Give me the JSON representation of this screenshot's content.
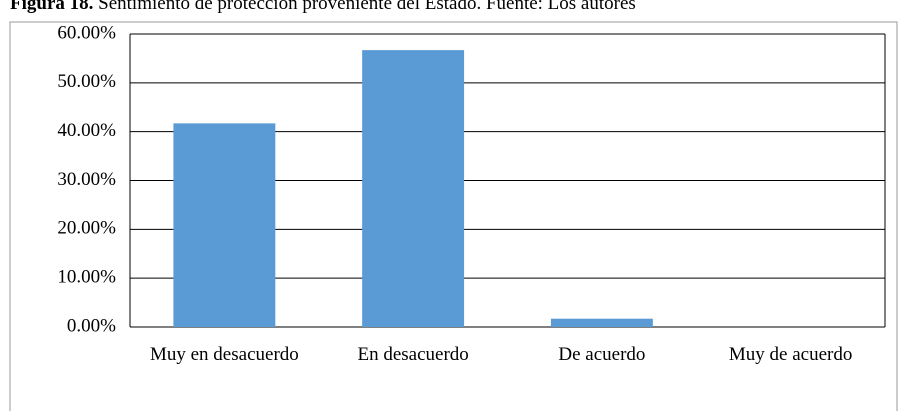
{
  "chart_data": {
    "type": "bar",
    "figure_label": "Figura 18.",
    "title": "Sentimiento de protección proveniente del Estado. Fuente: Los autores",
    "categories": [
      "Muy en desacuerdo",
      "En desacuerdo",
      "De acuerdo",
      "Muy de acuerdo"
    ],
    "values": [
      41.7,
      56.7,
      1.7,
      0
    ],
    "color": "#5b9bd5",
    "ylim": [
      0,
      60
    ],
    "yticks": [
      {
        "value": 0,
        "label": "0.00%"
      },
      {
        "value": 10,
        "label": "10.00%"
      },
      {
        "value": 20,
        "label": "20.00%"
      },
      {
        "value": 30,
        "label": "30.00%"
      },
      {
        "value": 40,
        "label": "40.00%"
      },
      {
        "value": 50,
        "label": "50.00%"
      },
      {
        "value": 60,
        "label": "60.00%"
      }
    ],
    "grid": true
  }
}
